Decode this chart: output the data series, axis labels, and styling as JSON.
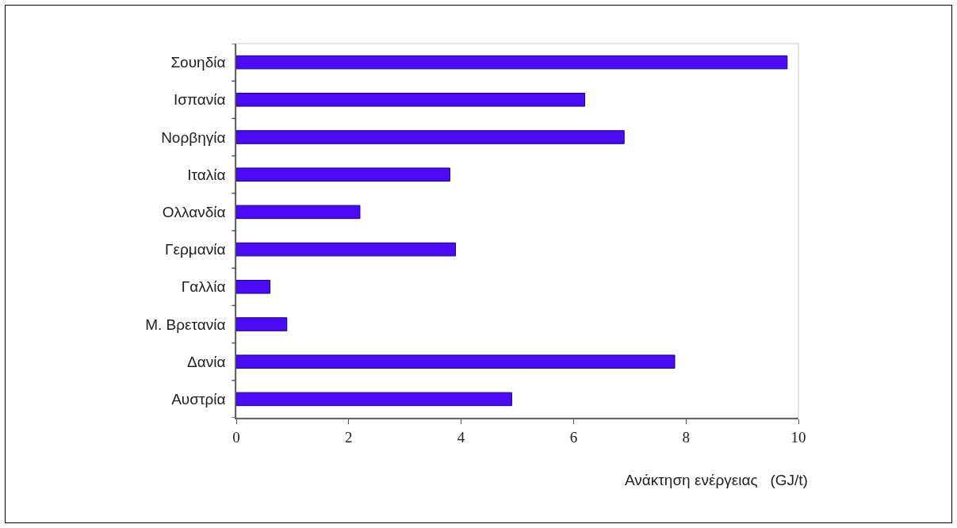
{
  "chart_data": {
    "type": "bar",
    "orientation": "horizontal",
    "categories": [
      "Σουηδία",
      "Ισπανία",
      "Νορβηγία",
      "Ιταλία",
      "Ολλανδία",
      "Γερμανία",
      "Γαλλία",
      "Μ. Βρετανία",
      "Δανία",
      "Αυστρία"
    ],
    "values": [
      9.8,
      6.2,
      6.9,
      3.8,
      2.2,
      3.9,
      0.6,
      0.9,
      7.8,
      4.9
    ],
    "color": "#4a0bf2",
    "xlabel": "Ανάκτηση ενέργειας   (GJ/t)",
    "xlim": [
      0,
      10
    ],
    "xticks": [
      0,
      2,
      4,
      6,
      8,
      10
    ],
    "grid": false
  }
}
